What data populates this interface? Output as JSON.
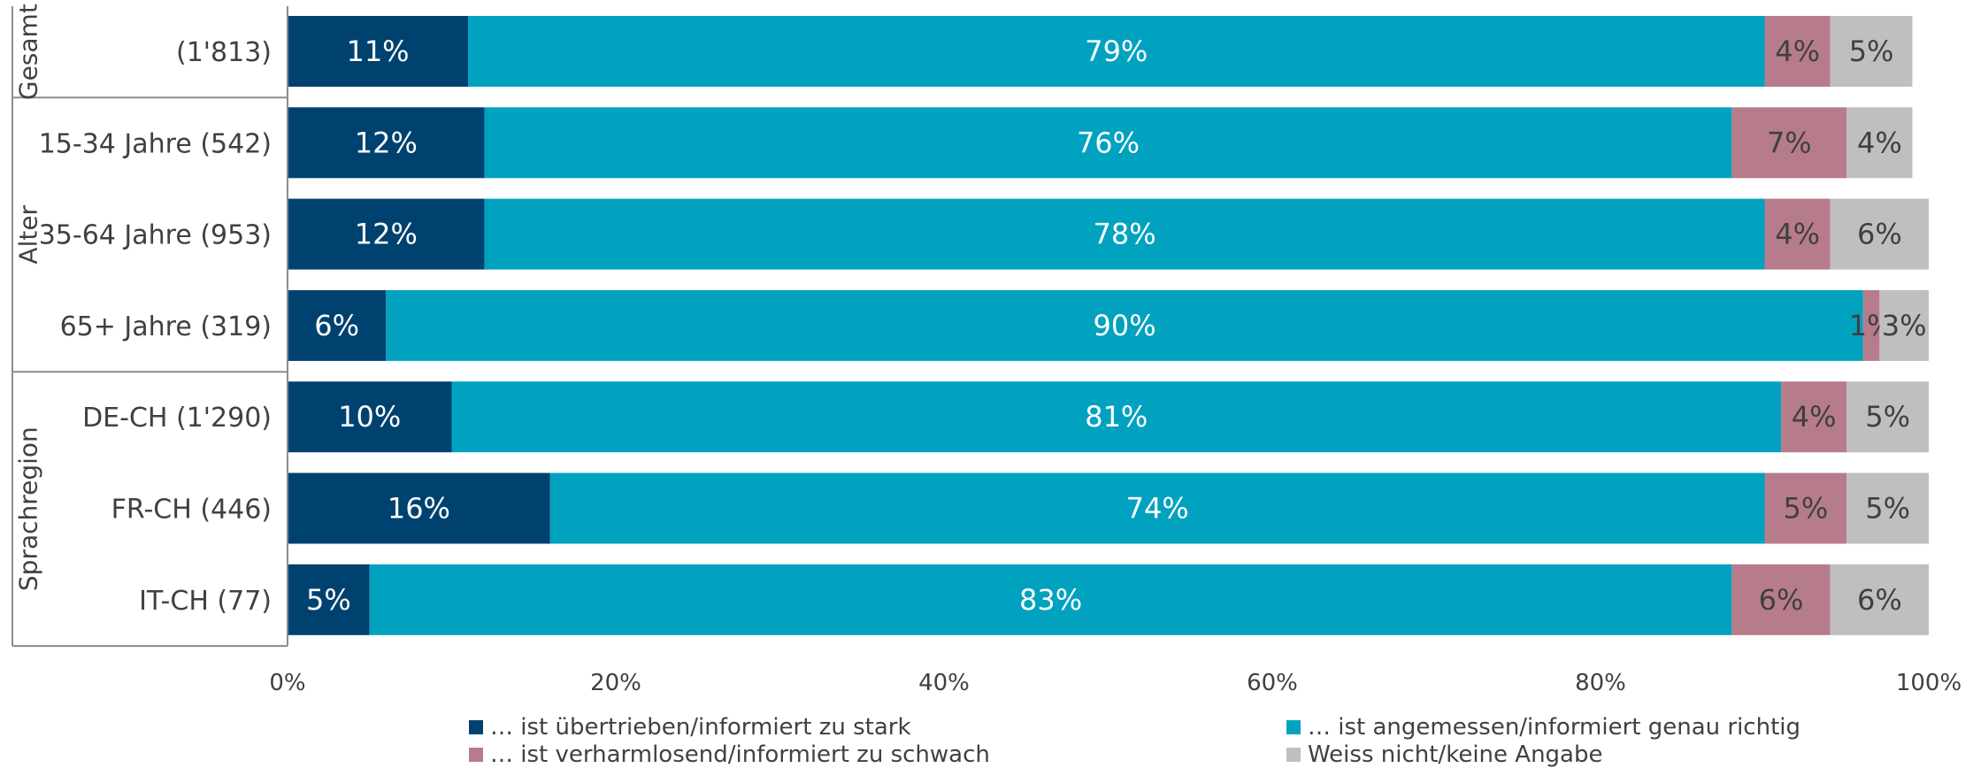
{
  "chart_data": {
    "type": "bar",
    "orientation": "horizontal",
    "stacked": "100%",
    "groups": [
      {
        "name": "Gesamt",
        "rows": [
          0
        ]
      },
      {
        "name": "Alter",
        "rows": [
          1,
          2,
          3
        ]
      },
      {
        "name": "Sprachregion",
        "rows": [
          4,
          5,
          6
        ]
      }
    ],
    "categories": [
      "(1'813)",
      "15-34 Jahre (542)",
      "35-64 Jahre (953)",
      "65+ Jahre (319)",
      "DE-CH (1'290)",
      "FR-CH (446)",
      "IT-CH (77)"
    ],
    "series": [
      {
        "name": "… ist übertrieben/informiert zu stark",
        "color": "#00426f",
        "values": [
          11,
          12,
          12,
          6,
          10,
          16,
          5
        ]
      },
      {
        "name": "… ist angemessen/informiert genau richtig",
        "color": "#00a2c0",
        "values": [
          79,
          76,
          78,
          90,
          81,
          74,
          83
        ]
      },
      {
        "name": "… ist verharmlosend/informiert zu schwach",
        "color": "#b77c8b",
        "values": [
          4,
          7,
          4,
          1,
          4,
          5,
          6
        ]
      },
      {
        "name": "Weiss nicht/keine Angabe",
        "color": "#bfbfbf",
        "values": [
          5,
          4,
          6,
          3,
          5,
          5,
          6
        ]
      }
    ],
    "x_ticks": [
      "0%",
      "20%",
      "40%",
      "60%",
      "80%",
      "100%"
    ],
    "xlim": [
      0,
      100
    ],
    "legend_position": "bottom",
    "grid": false,
    "value_label_colors": {
      "dark": "#ffffff",
      "light": "#404040"
    }
  }
}
